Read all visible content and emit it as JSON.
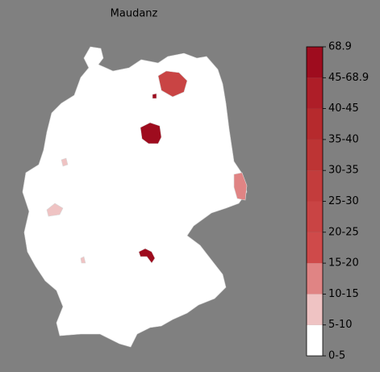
{
  "title": "Maudanz",
  "legend": {
    "ticks": [
      "0-5",
      "5-10",
      "10-15",
      "15-20",
      "20-25",
      "25-30",
      "30-35",
      "35-40",
      "40-45",
      "45-68.9",
      "68.9"
    ],
    "colors": [
      "#ffffff",
      "#efc3c3",
      "#e08484",
      "#cf4a4a",
      "#c94444",
      "#c33c3c",
      "#bd3434",
      "#b62a2d",
      "#ae1e28",
      "#9e0c1e"
    ]
  }
}
